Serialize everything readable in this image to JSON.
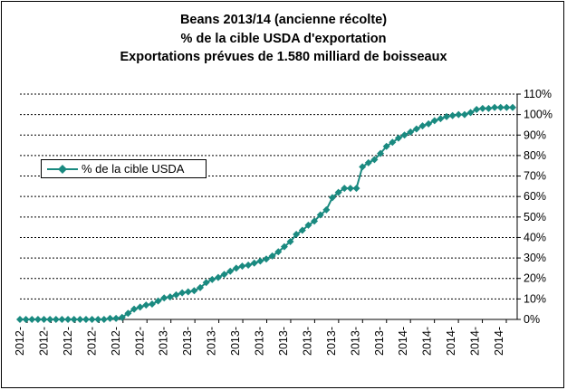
{
  "chart_data": {
    "type": "line",
    "title": [
      "Beans 2013/14 (ancienne récolte)",
      "% de la cible USDA d'exportation",
      "Exportations prévues de 1.580 milliard  de boisseaux"
    ],
    "xlabel": "",
    "ylabel": "",
    "y_axis_position": "right",
    "ylim": [
      0,
      110
    ],
    "y_ticks": [
      "0%",
      "10%",
      "20%",
      "30%",
      "40%",
      "50%",
      "60%",
      "70%",
      "80%",
      "90%",
      "100%",
      "110%"
    ],
    "x_tick_labels": [
      "2012-",
      "2012-",
      "2012-",
      "2012-",
      "2012-",
      "2012-",
      "2013-",
      "2013-",
      "2013-",
      "2013-",
      "2013-",
      "2013-",
      "2013-",
      "2013-",
      "2013-",
      "2013-",
      "2014-",
      "2014-",
      "2014-",
      "2014-",
      "2014-"
    ],
    "grid": true,
    "legend_position": "left",
    "series": [
      {
        "name": "% de la cible USDA",
        "color": "#1a8a80",
        "marker": "diamond",
        "values": [
          0,
          0,
          0,
          0,
          0,
          0,
          0,
          0,
          0,
          0,
          0,
          0,
          0,
          0,
          0,
          0.5,
          0.5,
          1,
          3,
          5,
          6,
          7,
          7.5,
          9,
          10.5,
          11,
          12,
          13,
          13.5,
          14,
          15.5,
          18,
          19.5,
          20.5,
          22,
          23.5,
          25,
          26,
          26.5,
          27.5,
          28.5,
          29.5,
          31,
          33,
          35.5,
          38,
          41.5,
          43.5,
          46,
          48,
          51,
          53.5,
          59.5,
          62,
          64,
          64,
          64,
          74.5,
          76.5,
          78,
          81,
          84.5,
          86.5,
          88.5,
          90,
          91.5,
          93,
          94.5,
          95.5,
          97,
          98,
          99,
          99.5,
          100,
          100,
          101,
          102.5,
          103,
          103,
          103.5,
          103.5,
          103.5,
          103.5
        ]
      }
    ]
  },
  "legend": {
    "label": "% de la cible USDA"
  }
}
